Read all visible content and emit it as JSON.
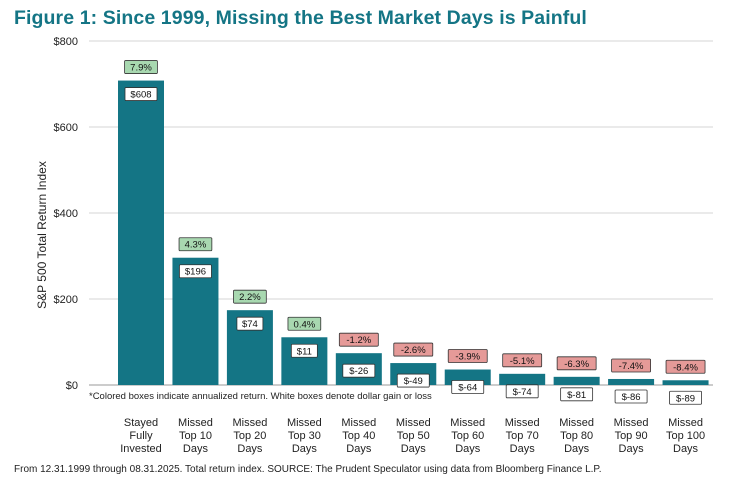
{
  "title": "Figure 1: Since 1999, Missing the Best Market Days is Painful",
  "source": "From 12.31.1999 through 08.31.2025. Total return index. SOURCE: The Prudent Speculator using data from Bloomberg Finance L.P.",
  "colors": {
    "title": "#147585",
    "bar": "#147585",
    "positive_box": "#a8d8b0",
    "negative_box": "#e59a98",
    "dollar_box": "#ffffff"
  },
  "chart_data": {
    "type": "bar",
    "ylabel": "S&P 500 Total Return Index",
    "ylim": [
      0,
      800
    ],
    "yticks": [
      0,
      200,
      400,
      600,
      800
    ],
    "ytick_labels": [
      "$0",
      "$200",
      "$400",
      "$600",
      "$800"
    ],
    "grid": true,
    "note": "*Colored boxes indicate annualized return. White boxes denote dollar gain or loss",
    "categories": [
      [
        "Stayed",
        "Fully",
        "Invested"
      ],
      [
        "Missed",
        "Top 10",
        "Days"
      ],
      [
        "Missed",
        "Top 20",
        "Days"
      ],
      [
        "Missed",
        "Top 30",
        "Days"
      ],
      [
        "Missed",
        "Top 40",
        "Days"
      ],
      [
        "Missed",
        "Top 50",
        "Days"
      ],
      [
        "Missed",
        "Top 60",
        "Days"
      ],
      [
        "Missed",
        "Top 70",
        "Days"
      ],
      [
        "Missed",
        "Top 80",
        "Days"
      ],
      [
        "Missed",
        "Top 90",
        "Days"
      ],
      [
        "Missed",
        "Top 100",
        "Days"
      ]
    ],
    "values": [
      708,
      296,
      174,
      111,
      74,
      51,
      36,
      26,
      19,
      14,
      11
    ],
    "annualized_return": [
      7.9,
      4.3,
      2.2,
      0.4,
      -1.2,
      -2.6,
      -3.9,
      -5.1,
      -6.3,
      -7.4,
      -8.4
    ],
    "annualized_return_labels": [
      "7.9%",
      "4.3%",
      "2.2%",
      "0.4%",
      "-1.2%",
      "-2.6%",
      "-3.9%",
      "-5.1%",
      "-6.3%",
      "-7.4%",
      "-8.4%"
    ],
    "dollar_change_labels": [
      "$608",
      "$196",
      "$74",
      "$11",
      "$-26",
      "$-49",
      "$-64",
      "$-74",
      "$-81",
      "$-86",
      "$-89"
    ]
  }
}
